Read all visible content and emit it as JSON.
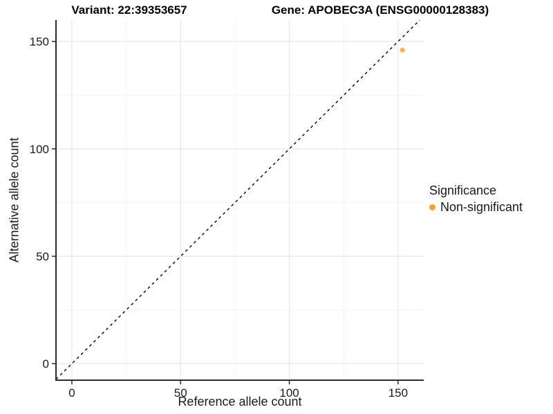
{
  "titles": {
    "variant": "Variant: 22:39353657",
    "gene": "Gene: APOBEC3A (ENSG00000128383)"
  },
  "axes": {
    "x_label": "Reference allele count",
    "y_label": "Alternative allele count"
  },
  "legend": {
    "title": "Significance",
    "items": [
      {
        "label": "Non-significant",
        "color": "#F9A22B"
      }
    ]
  },
  "chart_data": {
    "type": "scatter",
    "title": "Variant: 22:39353657 — Gene: APOBEC3A (ENSG00000128383)",
    "xlabel": "Reference allele count",
    "ylabel": "Alternative allele count",
    "xlim": [
      -7.3,
      161.8
    ],
    "ylim": [
      -7.7,
      160.0
    ],
    "x_ticks": [
      0,
      50,
      100,
      150
    ],
    "y_ticks": [
      0,
      50,
      100,
      150
    ],
    "x_minor_ticks": [
      25,
      75,
      125
    ],
    "y_minor_ticks": [
      25,
      75,
      125
    ],
    "grid": true,
    "legend_position": "right",
    "series": [
      {
        "name": "Non-significant",
        "color": "#F9A22B",
        "points": [
          {
            "x": 152,
            "y": 146
          }
        ]
      }
    ],
    "reference_line": {
      "type": "identity",
      "slope": 1,
      "intercept": 0,
      "style": "dashed",
      "color": "#000000"
    },
    "style": {
      "axis_line_color": "#2b2b2b",
      "tick_color": "#2b2b2b",
      "tick_label_color": "#1a1a1a",
      "major_grid_color": "#e7e7e7",
      "minor_grid_color": "#f3f3f3",
      "point_opacity": 0.85
    }
  }
}
